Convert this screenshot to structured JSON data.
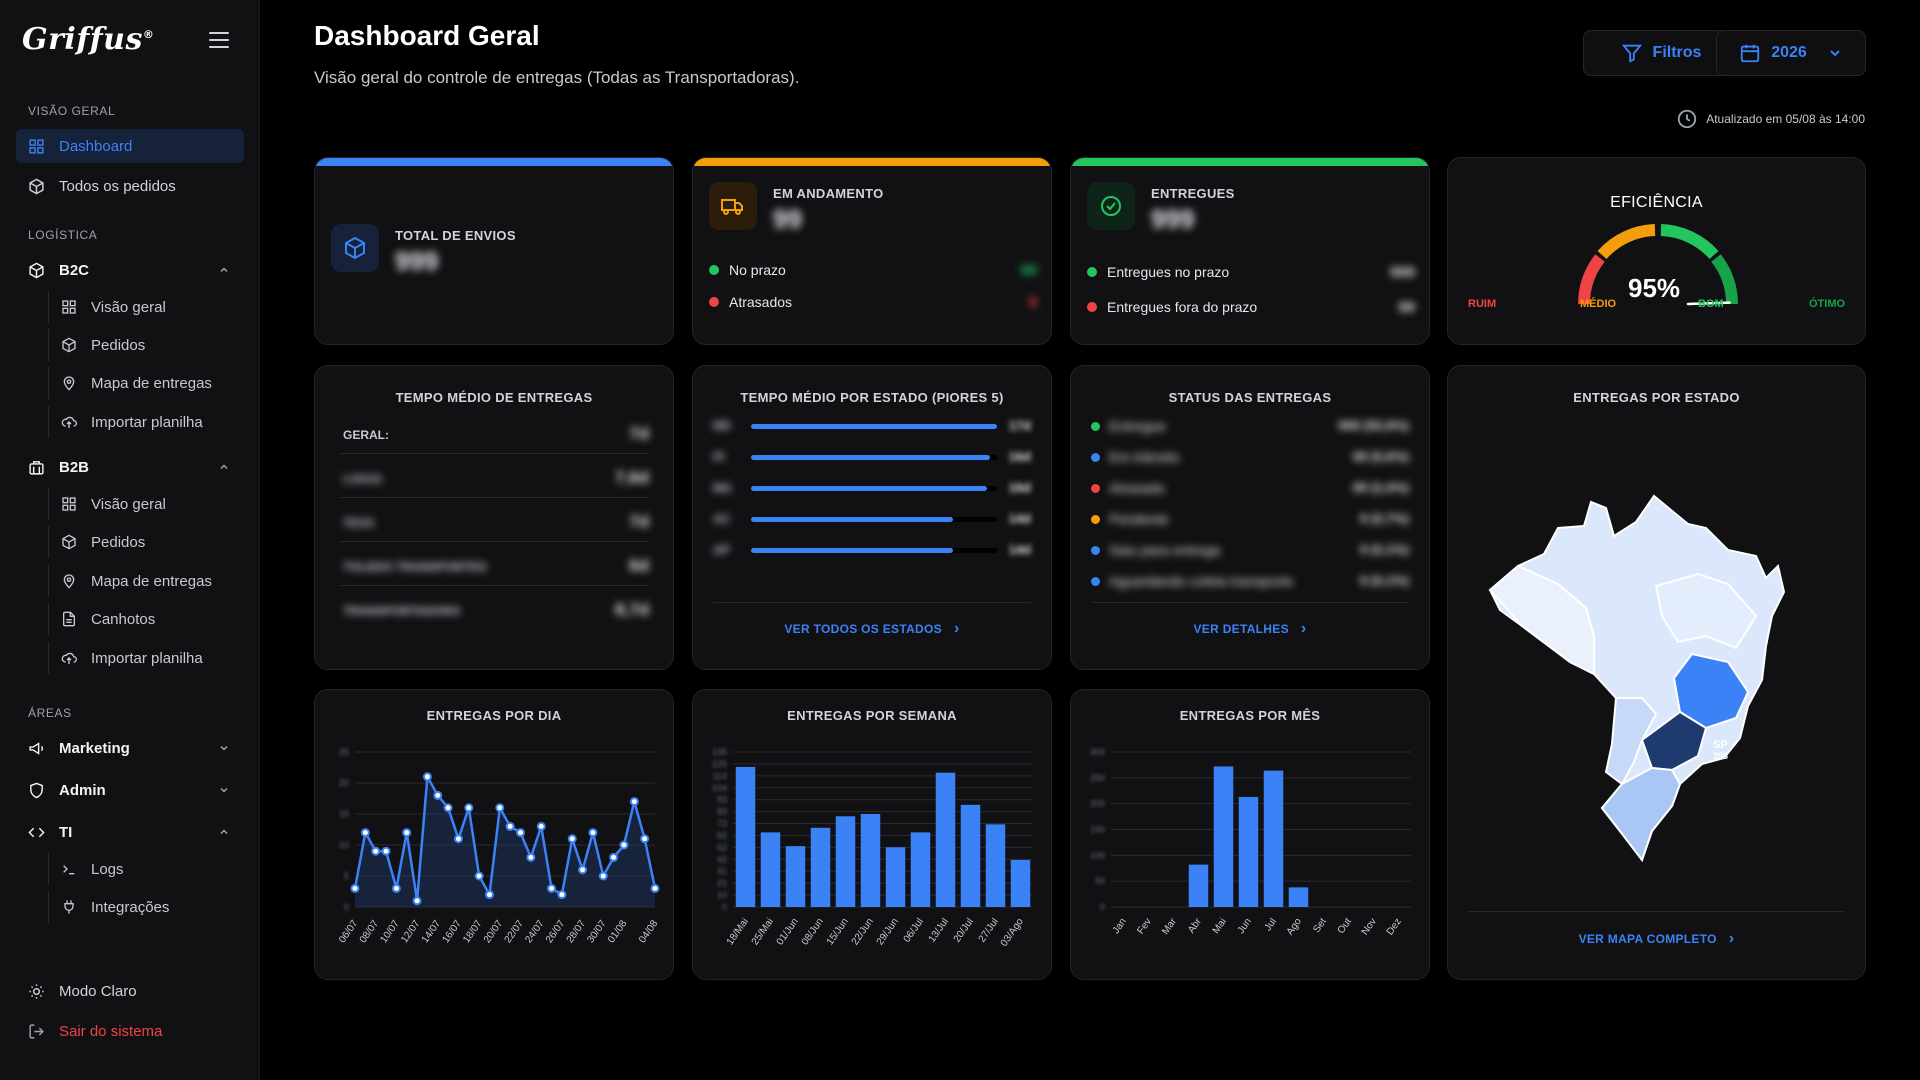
{
  "sidebar": {
    "logo": "Griffus",
    "section_overview": "VISÃO GERAL",
    "dashboard": "Dashboard",
    "all_orders": "Todos os pedidos",
    "section_logistics": "LOGÍSTICA",
    "b2c": {
      "label": "B2C",
      "items": [
        "Visão geral",
        "Pedidos",
        "Mapa de entregas",
        "Importar planilha"
      ]
    },
    "b2b": {
      "label": "B2B",
      "items": [
        "Visão geral",
        "Pedidos",
        "Mapa de entregas",
        "Canhotos",
        "Importar planilha"
      ]
    },
    "section_areas": "ÁREAS",
    "marketing": "Marketing",
    "admin": "Admin",
    "ti": {
      "label": "TI",
      "items": [
        "Logs",
        "Integrações"
      ]
    },
    "light_mode": "Modo Claro",
    "logout": "Sair do sistema"
  },
  "header": {
    "title": "Dashboard Geral",
    "subtitle": "Visão geral do controle de entregas (Todas as Transportadoras).",
    "filters_label": "Filtros",
    "year_label": "2026",
    "updated": "Atualizado em 05/08 às 14:00"
  },
  "kpi": {
    "total": {
      "label": "TOTAL DE ENVIOS",
      "value": "999"
    },
    "in_progress": {
      "label": "EM ANDAMENTO",
      "value": "99",
      "on_time": "No prazo",
      "on_time_val": "99",
      "late": "Atrasados",
      "late_val": "9"
    },
    "delivered": {
      "label": "ENTREGUES",
      "value": "999",
      "on_time": "Entregues no prazo",
      "on_time_val": "999",
      "late": "Entregues fora do prazo",
      "late_val": "99"
    },
    "efficiency": {
      "title": "EFICIÊNCIA",
      "value": "95%",
      "percent": 95,
      "ruim": "RUIM",
      "medio": "MÉDIO",
      "bom": "BOM",
      "otimo": "ÓTIMO"
    }
  },
  "avg_time": {
    "title": "TEMPO MÉDIO DE ENTREGAS",
    "rows": [
      {
        "label": "GERAL:",
        "value": "7d",
        "blur_label": false
      },
      {
        "label": "LOGGI",
        "value": "7,6d",
        "blur_label": true
      },
      {
        "label": "TEXX",
        "value": "7d",
        "blur_label": true
      },
      {
        "label": "TOLEDO TRANSPORTES",
        "value": "6d",
        "blur_label": true
      },
      {
        "label": "TRANSPORTADORA",
        "value": "8,7d",
        "blur_label": true
      }
    ]
  },
  "state_time": {
    "title": "TEMPO MÉDIO POR ESTADO (PIORES 5)",
    "rows": [
      {
        "state": "RR",
        "fill": 1.0,
        "value": "17d"
      },
      {
        "state": "PI",
        "fill": 0.97,
        "value": "16d"
      },
      {
        "state": "MA",
        "fill": 0.96,
        "value": "16d"
      },
      {
        "state": "AC",
        "fill": 0.82,
        "value": "14d"
      },
      {
        "state": "AP",
        "fill": 0.82,
        "value": "14d"
      }
    ],
    "link": "VER TODOS OS ESTADOS"
  },
  "status": {
    "title": "STATUS DAS ENTREGAS",
    "rows": [
      {
        "label": "Entregue",
        "value": "999 (50,9%)",
        "color": "#22c55e"
      },
      {
        "label": "Em trânsito",
        "value": "99 (5,6%)",
        "color": "#3b82f6"
      },
      {
        "label": "Atrasado",
        "value": "99 (2,4%)",
        "color": "#ef4444"
      },
      {
        "label": "Pendente",
        "value": "9 (0,7%)",
        "color": "#f59e0b"
      },
      {
        "label": "Saiu para entrega",
        "value": "9 (0,1%)",
        "color": "#3b82f6"
      },
      {
        "label": "Aguardando coleta transporte",
        "value": "9 (0,1%)",
        "color": "#3b82f6"
      }
    ],
    "link": "VER DETALHES"
  },
  "map": {
    "title": "ENTREGAS POR ESTADO",
    "sp_label": "SP",
    "sp_value": "398",
    "link": "VER MAPA COMPLETO"
  },
  "charts": {
    "daily": {
      "title": "ENTREGAS POR DIA",
      "chart_data": {
        "type": "area",
        "x": [
          "06/07",
          "07/07",
          "08/07",
          "09/07",
          "10/07",
          "11/07",
          "12/07",
          "13/07",
          "14/07",
          "15/07",
          "16/07",
          "17/07",
          "18/07",
          "19/07",
          "20/07",
          "21/07",
          "22/07",
          "23/07",
          "24/07",
          "25/07",
          "26/07",
          "27/07",
          "28/07",
          "29/07",
          "30/07",
          "31/07",
          "01/08",
          "02/08",
          "03/08",
          "04/08"
        ],
        "xticks": [
          "06/07",
          "08/07",
          "10/07",
          "12/07",
          "14/07",
          "16/07",
          "18/07",
          "20/07",
          "22/07",
          "24/07",
          "26/07",
          "28/07",
          "30/07",
          "01/08",
          "04/08"
        ],
        "values": [
          3,
          12,
          9,
          9,
          3,
          12,
          1,
          21,
          18,
          16,
          11,
          16,
          5,
          2,
          16,
          13,
          12,
          8,
          13,
          3,
          2,
          11,
          6,
          12,
          5,
          8,
          10,
          17,
          11,
          3
        ],
        "ylim": [
          0,
          25
        ]
      }
    },
    "weekly": {
      "title": "ENTREGAS POR SEMANA",
      "chart_data": {
        "type": "bar",
        "categories": [
          "18/Mai",
          "25/Mai",
          "01/Jun",
          "08/Jun",
          "15/Jun",
          "22/Jun",
          "29/Jun",
          "06/Jul",
          "13/Jul",
          "20/Jul",
          "27/Jul",
          "03/Ago"
        ],
        "values": [
          122,
          65,
          53,
          69,
          79,
          81,
          52,
          65,
          117,
          89,
          72,
          41
        ],
        "ylim": [
          0,
          135
        ]
      }
    },
    "monthly": {
      "title": "ENTREGAS POR MÊS",
      "chart_data": {
        "type": "bar",
        "categories": [
          "Jan",
          "Fev",
          "Mar",
          "Abr",
          "Mai",
          "Jun",
          "Jul",
          "Ago",
          "Set",
          "Out",
          "Nov",
          "Dez"
        ],
        "values": [
          0,
          0,
          0,
          82,
          272,
          213,
          264,
          38,
          0,
          0,
          0,
          0
        ],
        "ylim": [
          0,
          300
        ]
      }
    }
  }
}
